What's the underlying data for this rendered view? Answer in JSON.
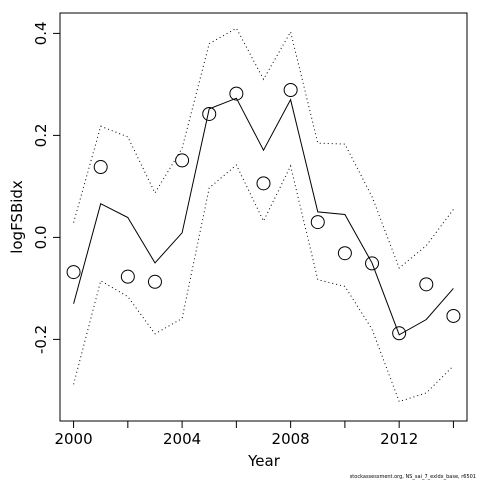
{
  "chart_data": {
    "type": "line",
    "xlabel": "Year",
    "ylabel": "logFSBidx",
    "xlim": [
      1999.5,
      2014.5
    ],
    "ylim": [
      -0.36,
      0.44
    ],
    "x_ticks": [
      2000,
      2002,
      2004,
      2006,
      2008,
      2010,
      2012,
      2014
    ],
    "x_tick_labels": [
      "2000",
      "",
      "2004",
      "",
      "2008",
      "",
      "2012",
      ""
    ],
    "y_ticks": [
      -0.2,
      0.0,
      0.2,
      0.4
    ],
    "y_tick_labels": [
      "-0.2",
      "0.0",
      "0.2",
      "0.4"
    ],
    "x": [
      2000,
      2001,
      2002,
      2003,
      2004,
      2005,
      2006,
      2007,
      2008,
      2009,
      2010,
      2011,
      2012,
      2013,
      2014
    ],
    "observed": [
      -0.068,
      0.138,
      -0.077,
      -0.087,
      0.151,
      0.242,
      0.282,
      0.106,
      0.289,
      0.03,
      -0.031,
      -0.051,
      -0.188,
      -0.092,
      -0.154
    ],
    "fitted": [
      -0.13,
      0.066,
      0.039,
      -0.05,
      0.009,
      0.252,
      0.273,
      0.171,
      0.27,
      0.05,
      0.045,
      -0.05,
      -0.191,
      -0.161,
      -0.1
    ],
    "upper": [
      0.029,
      0.218,
      0.197,
      0.087,
      0.175,
      0.38,
      0.41,
      0.31,
      0.403,
      0.185,
      0.183,
      0.08,
      -0.06,
      -0.016,
      0.055
    ],
    "lower": [
      -0.288,
      -0.085,
      -0.116,
      -0.189,
      -0.159,
      0.097,
      0.142,
      0.032,
      0.14,
      -0.083,
      -0.096,
      -0.18,
      -0.322,
      -0.305,
      -0.252
    ],
    "grid": false,
    "legend": "none"
  },
  "footnote": "stockassessment.org, NS_sai_7_exldx_base, r6501"
}
